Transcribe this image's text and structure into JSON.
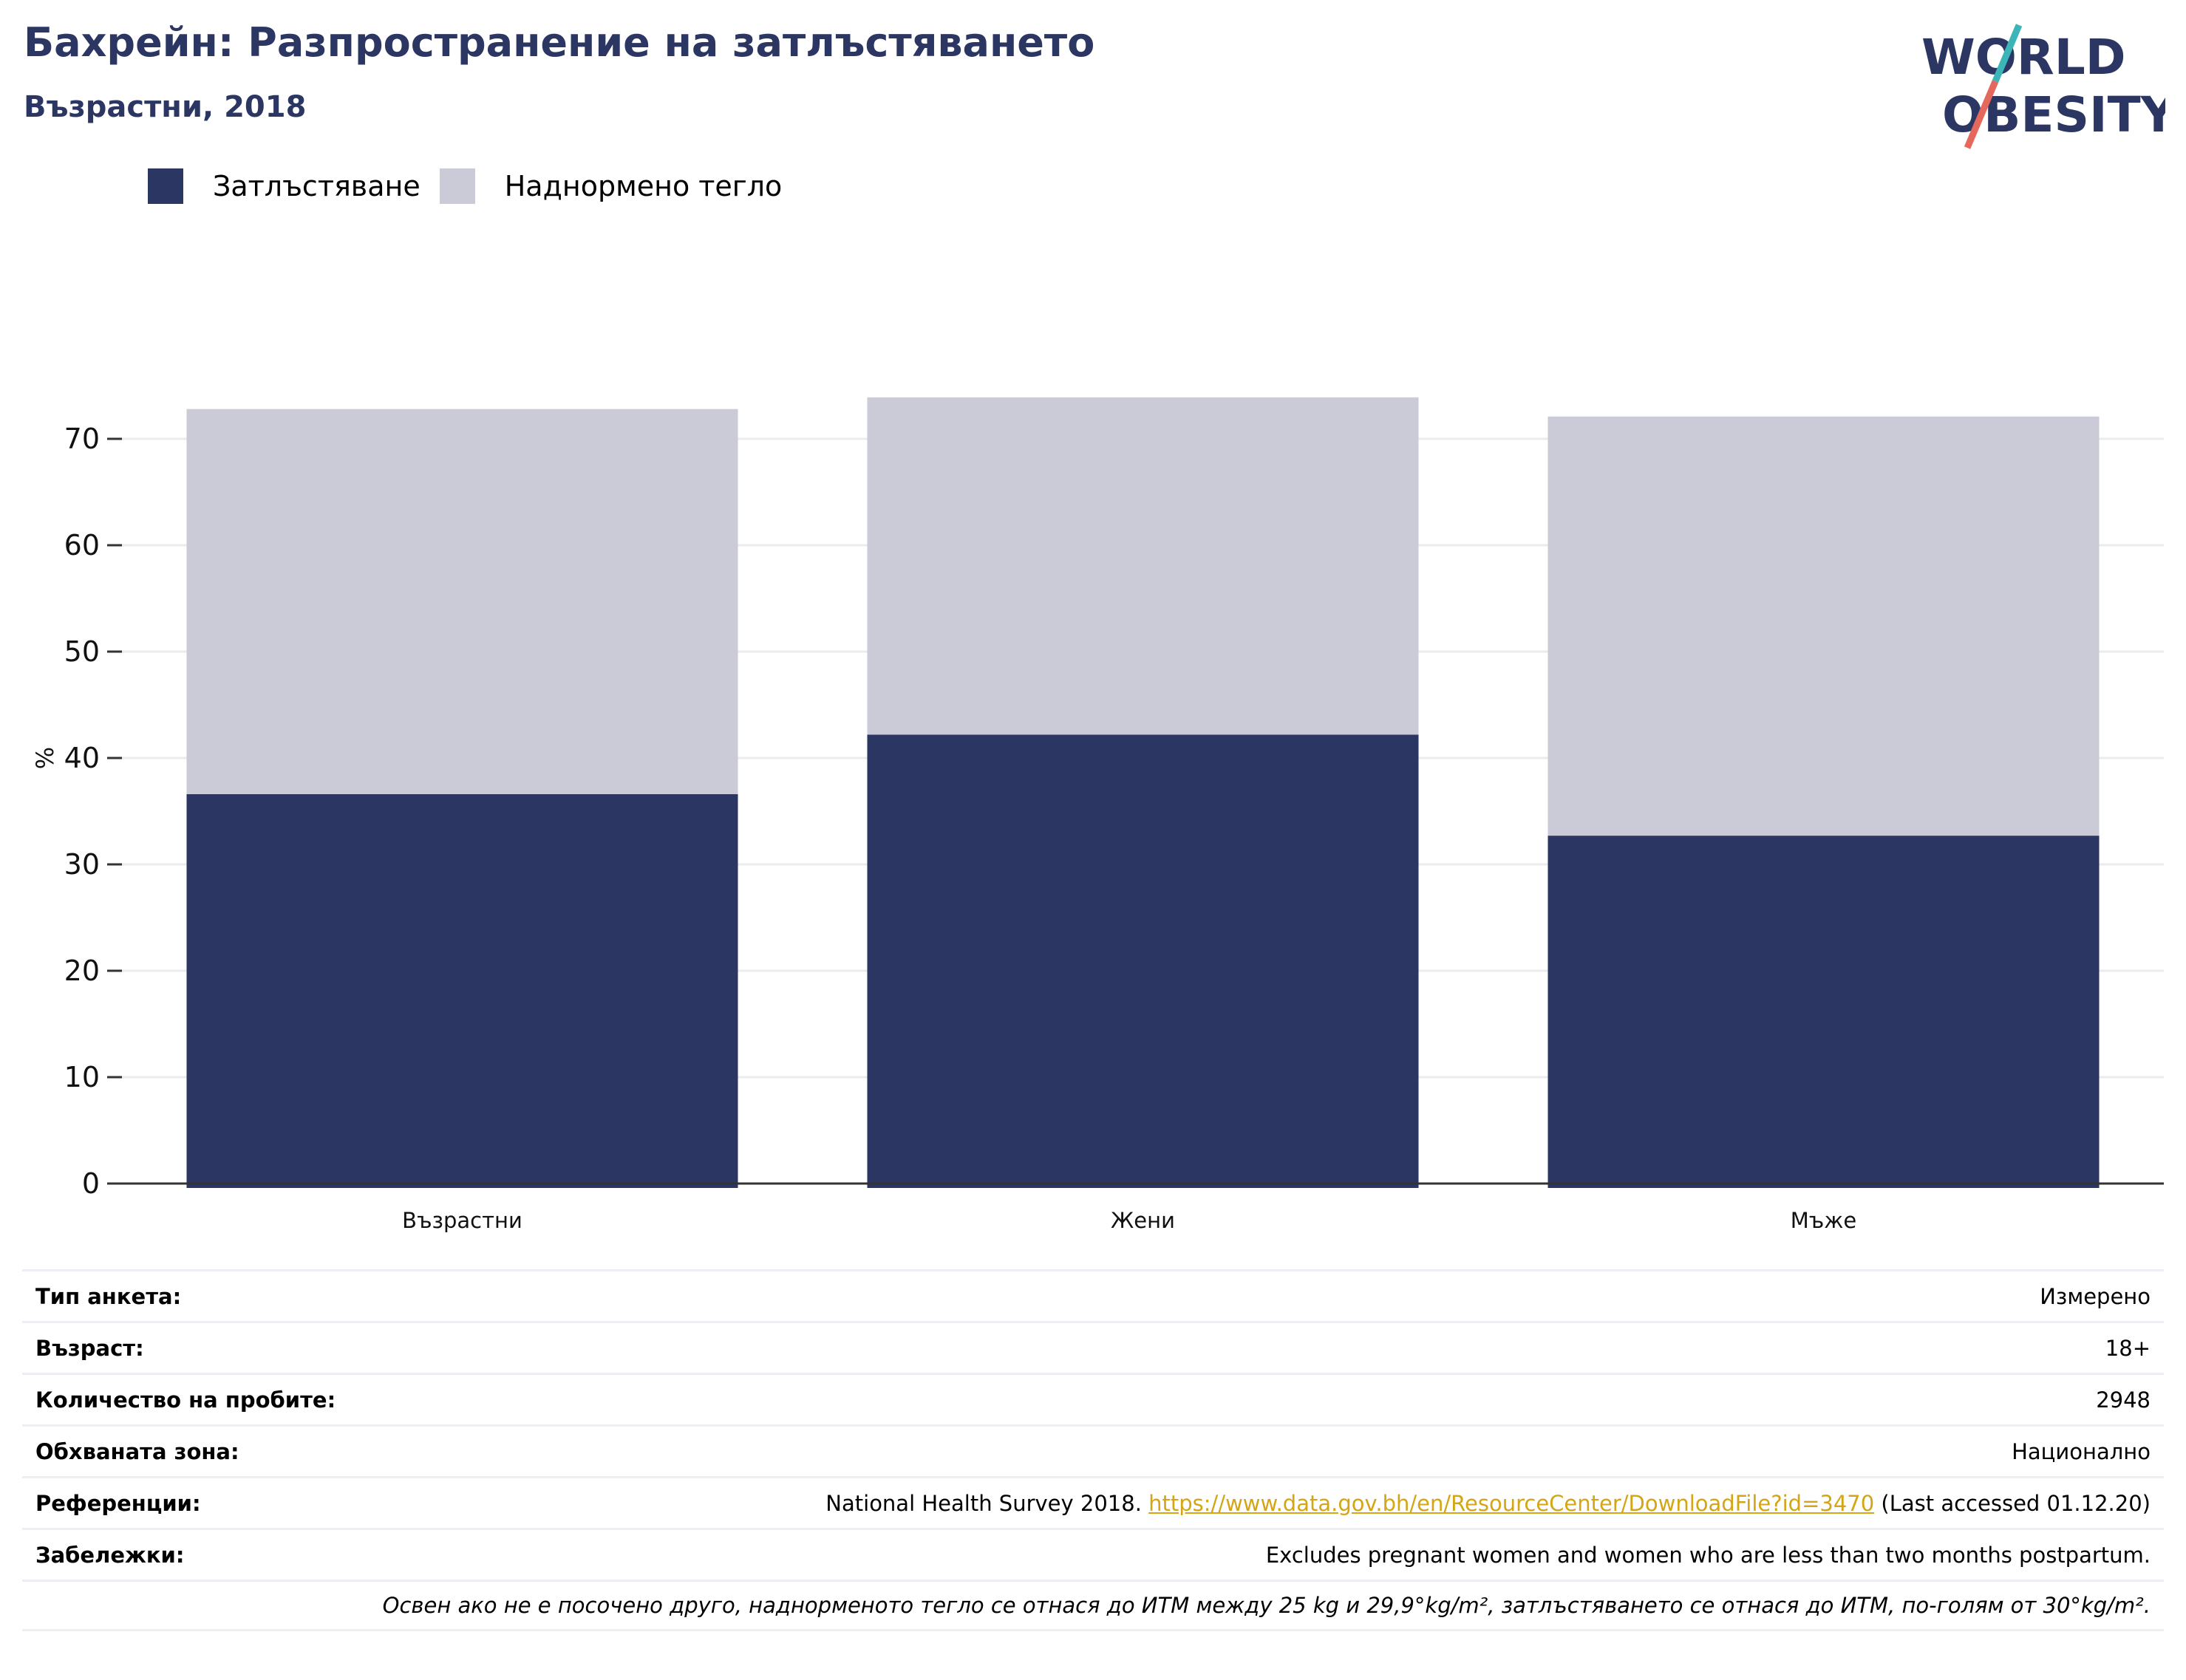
{
  "title": "Бахрейн: Разпространение на затлъстяването",
  "subtitle": "Възрастни, 2018",
  "logo": {
    "line1": "WORLD",
    "line2": "OBESITY"
  },
  "colors": {
    "obesity": "#2b3663",
    "overweight": "#cacbd7",
    "title": "#2b3663",
    "link": "#d4a514",
    "slash_teal": "#3bb5b8",
    "slash_red": "#e4685c"
  },
  "legend": [
    {
      "label": "Затлъстяване",
      "color": "#2b3663"
    },
    {
      "label": "Наднормено тегло",
      "color": "#cacbd7"
    }
  ],
  "chart_data": {
    "type": "bar",
    "stacked": true,
    "categories": [
      "Възрастни",
      "Жени",
      "Мъже"
    ],
    "series": [
      {
        "name": "Затлъстяване",
        "values": [
          36.6,
          42.2,
          32.7
        ]
      },
      {
        "name": "Наднормено тегло",
        "values": [
          36.2,
          31.7,
          39.4
        ]
      }
    ],
    "ylabel": "%",
    "xlabel": "",
    "ylim": [
      0,
      80
    ],
    "yticks": [
      0,
      10,
      20,
      30,
      40,
      50,
      60,
      70
    ],
    "grid": true,
    "legend_position": "top-left"
  },
  "info": {
    "survey_type": {
      "label": "Тип анкета:",
      "value": "Измерено"
    },
    "age": {
      "label": "Възраст:",
      "value": "18+"
    },
    "sample_size": {
      "label": "Количество на пробите:",
      "value": "2948"
    },
    "area": {
      "label": "Обхваната зона:",
      "value": "Национално"
    },
    "references": {
      "label": "Референции:",
      "text_before": "National Health Survey 2018. ",
      "link": "https://www.data.gov.bh/en/ResourceCenter/DownloadFile?id=3470",
      "text_after": " (Last accessed 01.12.20)"
    },
    "notes": {
      "label": "Забележки:",
      "value": "Excludes pregnant women and women who are less than two months postpartum."
    },
    "footnote": "Освен ако не е посочено друго, наднорменото тегло се отнася до ИТМ между 25 kg и 29,9°kg/m², затлъстяването се отнася до ИТМ, по-голям от 30°kg/m²."
  }
}
